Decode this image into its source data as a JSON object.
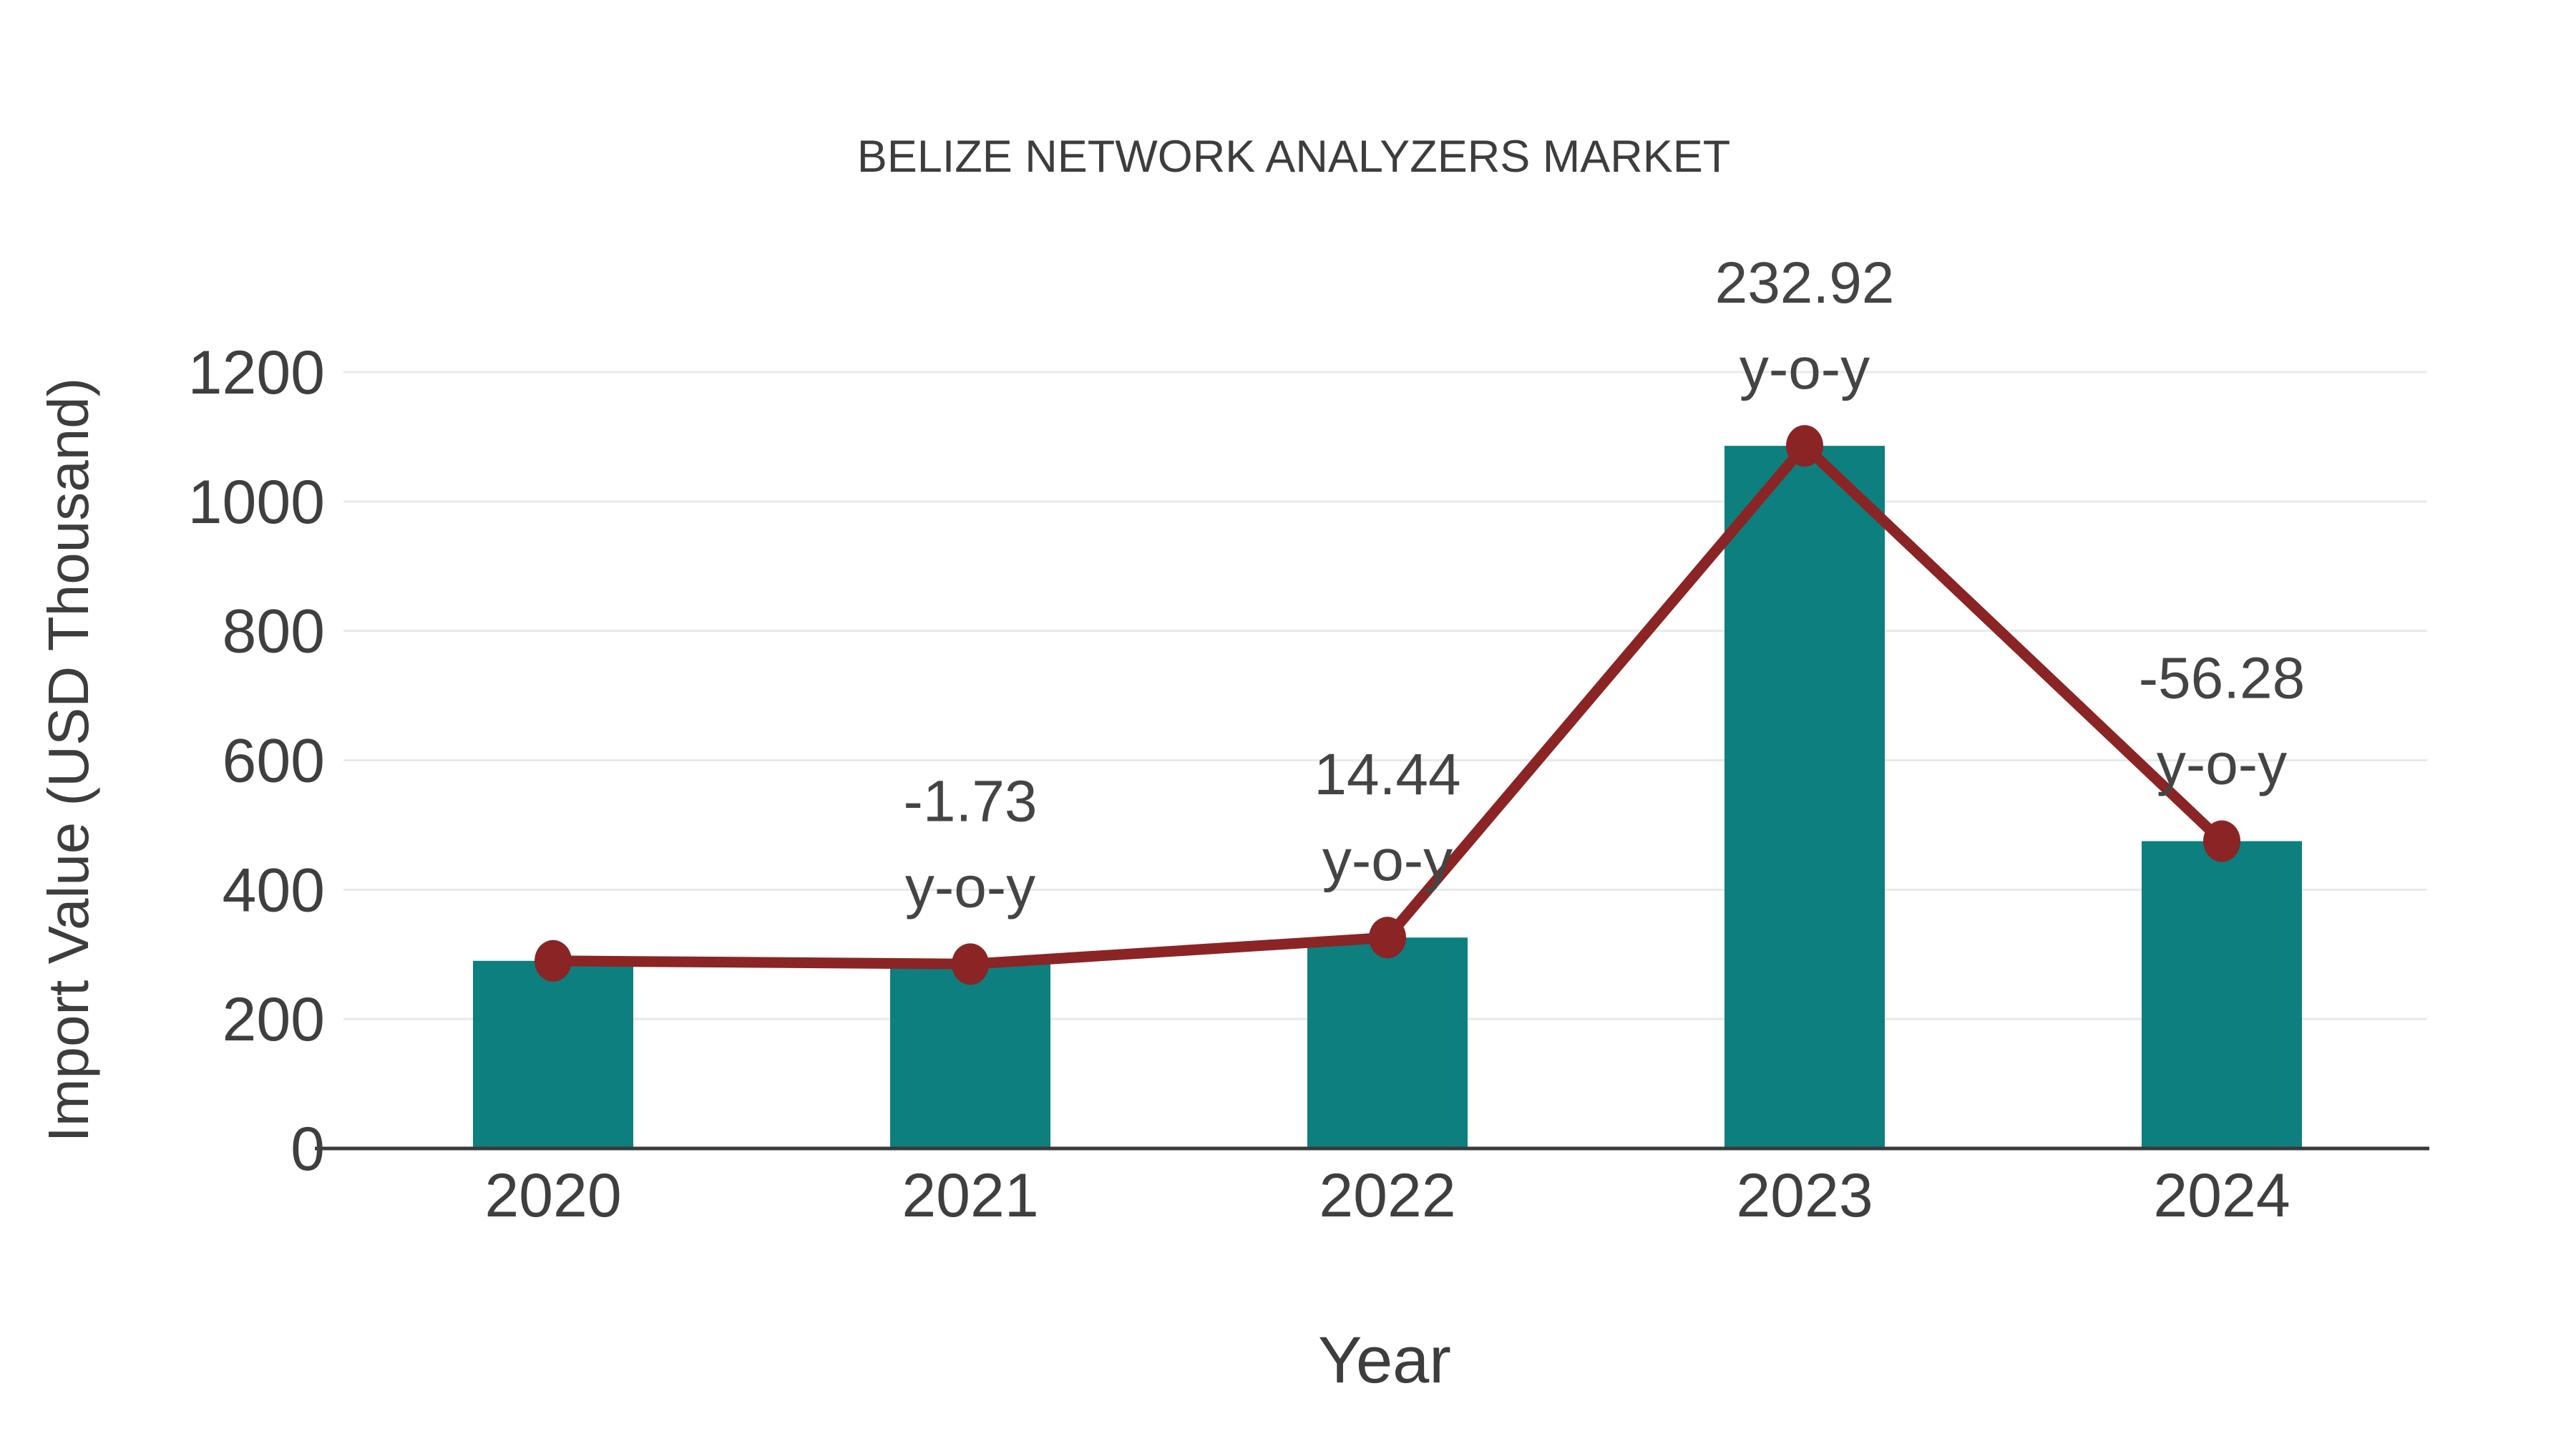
{
  "chart_data": {
    "type": "bar",
    "title": "BELIZE NETWORK ANALYZERS MARKET",
    "xlabel": "Year",
    "ylabel": "Import Value (USD Thousand)",
    "categories": [
      "2020",
      "2021",
      "2022",
      "2023",
      "2024"
    ],
    "series": [
      {
        "name": "Import Value (USD Thousand)",
        "type": "bar",
        "color": "#0d7f7e",
        "values": [
          290,
          285,
          326,
          1086,
          475
        ]
      },
      {
        "name": "y-o-y % change",
        "type": "line",
        "color": "#8b2424",
        "plotted_at": "bar_values",
        "values": [
          null,
          -1.73,
          14.44,
          232.92,
          -56.28
        ]
      }
    ],
    "point_labels": [
      null,
      "-1.73",
      "14.44",
      "232.92",
      "-56.28"
    ],
    "point_label_suffix": "y-o-y",
    "yticks": [
      0,
      200,
      400,
      600,
      800,
      1000,
      1200
    ],
    "ylim": [
      0,
      1200
    ],
    "grid": true,
    "legend_position": "none",
    "colors": {
      "bar": "#0d7f7e",
      "line": "#8b2424",
      "marker": "#8b2424",
      "grid": "#e9e9e9",
      "axis": "#3a3a3a",
      "tick_text": "#3f3f3f",
      "label_text": "#444444",
      "title_text": "#3d3d3d",
      "background": "#ffffff"
    }
  }
}
